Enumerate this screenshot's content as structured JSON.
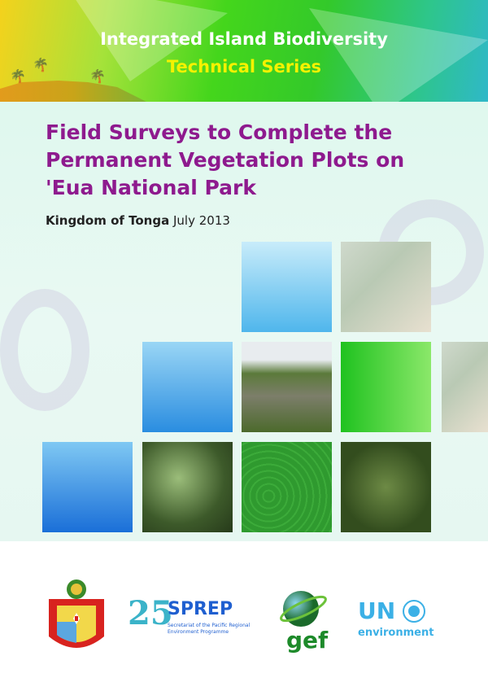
{
  "header": {
    "series_line1": "Integrated Island Biodiversity",
    "series_line2": "Technical Series"
  },
  "title": {
    "line1": "Field Surveys to Complete the",
    "line2": "Permanent Vegetation Plots on",
    "line3": "'Eua National Park"
  },
  "subtitle": {
    "country": "Kingdom of Tonga",
    "date": "July 2013"
  },
  "logos": {
    "tonga": "Kingdom of Tonga coat of arms",
    "sprep_number": "25",
    "sprep_name": "SPREP",
    "sprep_sub": "Secretariat of the Pacific Regional Environment Programme",
    "gef": "gef",
    "un": "UN",
    "un_env": "environment"
  },
  "colors": {
    "title": "#8e1a8e",
    "series_line2": "#f6f200",
    "sprep": "#1f5fd0",
    "gef": "#1d8a2a",
    "un": "#3bb0e6"
  }
}
